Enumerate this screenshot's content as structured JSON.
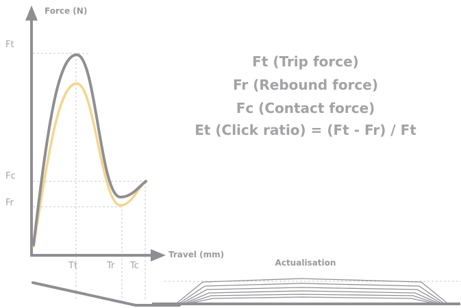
{
  "axes": {
    "y_label": "Force (N)",
    "x_label": "Travel (mm)"
  },
  "y_ticks": [
    "Ft",
    "Fc",
    "Fr"
  ],
  "x_ticks": [
    "Tt",
    "Tr",
    "Tc"
  ],
  "legend": [
    "Ft (Trip force)",
    "Fr (Rebound force)",
    "Fc (Contact force)",
    "Et (Click ratio) = (Ft - Fr) / Ft"
  ],
  "section_label": "Actualisation",
  "colors": {
    "axis": "#8e8e93",
    "curve_gray": "#8f8f93",
    "curve_yellow": "#f5d58c",
    "guide": "#c8c8c8",
    "text": "#a3a3a6"
  }
}
